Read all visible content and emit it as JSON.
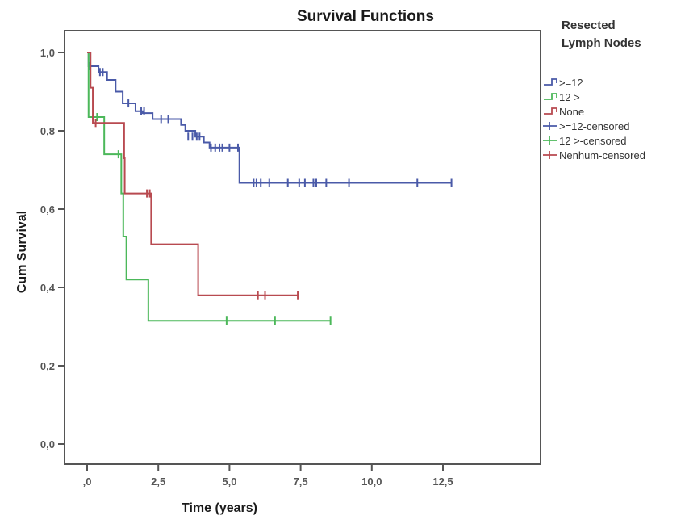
{
  "chart_data": {
    "type": "line",
    "subtype": "kaplan-meier-step",
    "title": "Survival Functions",
    "xlabel": "Time (years)",
    "ylabel": "Cum Survival",
    "xlim": [
      -0.5,
      14.5
    ],
    "ylim": [
      -0.05,
      1.05
    ],
    "xticks": [
      0,
      2.5,
      5.0,
      7.5,
      10.0,
      12.5
    ],
    "xtick_labels": [
      ",0",
      "2,5",
      "5,0",
      "7,5",
      "10,0",
      "12,5"
    ],
    "yticks": [
      0.0,
      0.2,
      0.4,
      0.6,
      0.8,
      1.0
    ],
    "ytick_labels": [
      "0,0",
      "0,2",
      "0,4",
      "0,6",
      "0,8",
      "1,0"
    ],
    "grid": false,
    "legend": {
      "title_lines": [
        "Resected",
        "Lymph Nodes"
      ],
      "placement": "right",
      "entries": [
        {
          "label": ">=12",
          "kind": "step",
          "series": 0
        },
        {
          "label": "12 >",
          "kind": "step",
          "series": 1
        },
        {
          "label": "None",
          "kind": "step",
          "series": 2
        },
        {
          "label": ">=12-censored",
          "kind": "censor",
          "series": 0
        },
        {
          "label": "12 >-censored",
          "kind": "censor",
          "series": 1
        },
        {
          "label": "Nenhum-censored",
          "kind": "censor",
          "series": 2
        }
      ]
    },
    "series": [
      {
        "name": ">=12",
        "color": "#4a5aa8",
        "steps": [
          [
            0,
            1.0
          ],
          [
            0.05,
            0.965
          ],
          [
            0.4,
            0.95
          ],
          [
            0.7,
            0.93
          ],
          [
            1.0,
            0.9
          ],
          [
            1.25,
            0.87
          ],
          [
            1.7,
            0.85
          ],
          [
            1.95,
            0.845
          ],
          [
            2.3,
            0.83
          ],
          [
            3.3,
            0.815
          ],
          [
            3.45,
            0.8
          ],
          [
            3.8,
            0.785
          ],
          [
            4.1,
            0.77
          ],
          [
            4.3,
            0.757
          ],
          [
            5.35,
            0.667
          ]
        ],
        "end": 12.8,
        "censored": [
          [
            0.1,
            0.965
          ],
          [
            0.45,
            0.95
          ],
          [
            0.55,
            0.95
          ],
          [
            1.45,
            0.87
          ],
          [
            1.9,
            0.85
          ],
          [
            2.0,
            0.85
          ],
          [
            2.6,
            0.83
          ],
          [
            2.85,
            0.83
          ],
          [
            3.55,
            0.785
          ],
          [
            3.7,
            0.785
          ],
          [
            3.85,
            0.785
          ],
          [
            3.95,
            0.785
          ],
          [
            4.35,
            0.757
          ],
          [
            4.5,
            0.757
          ],
          [
            4.65,
            0.757
          ],
          [
            4.75,
            0.757
          ],
          [
            5.0,
            0.757
          ],
          [
            5.3,
            0.757
          ],
          [
            5.85,
            0.667
          ],
          [
            5.95,
            0.667
          ],
          [
            6.1,
            0.667
          ],
          [
            6.4,
            0.667
          ],
          [
            7.05,
            0.667
          ],
          [
            7.45,
            0.667
          ],
          [
            7.65,
            0.667
          ],
          [
            7.95,
            0.667
          ],
          [
            8.05,
            0.667
          ],
          [
            8.4,
            0.667
          ],
          [
            9.2,
            0.667
          ],
          [
            11.6,
            0.667
          ],
          [
            12.8,
            0.667
          ]
        ]
      },
      {
        "name": "12 >",
        "color": "#4cb85a",
        "steps": [
          [
            0,
            1.0
          ],
          [
            0.05,
            0.835
          ],
          [
            0.6,
            0.74
          ],
          [
            1.2,
            0.64
          ],
          [
            1.27,
            0.53
          ],
          [
            1.38,
            0.42
          ],
          [
            2.15,
            0.315
          ]
        ],
        "end": 8.55,
        "censored": [
          [
            0.35,
            0.835
          ],
          [
            1.1,
            0.74
          ],
          [
            4.9,
            0.315
          ],
          [
            6.6,
            0.315
          ],
          [
            8.55,
            0.315
          ]
        ]
      },
      {
        "name": "None",
        "color": "#b84a50",
        "steps": [
          [
            0,
            1.0
          ],
          [
            0.12,
            0.91
          ],
          [
            0.2,
            0.82
          ],
          [
            1.3,
            0.73
          ],
          [
            1.32,
            0.64
          ],
          [
            2.25,
            0.51
          ],
          [
            3.9,
            0.38
          ]
        ],
        "end": 7.4,
        "censored": [
          [
            0.3,
            0.82
          ],
          [
            2.1,
            0.64
          ],
          [
            2.2,
            0.64
          ],
          [
            6.0,
            0.38
          ],
          [
            6.25,
            0.38
          ],
          [
            7.4,
            0.38
          ]
        ]
      }
    ]
  }
}
